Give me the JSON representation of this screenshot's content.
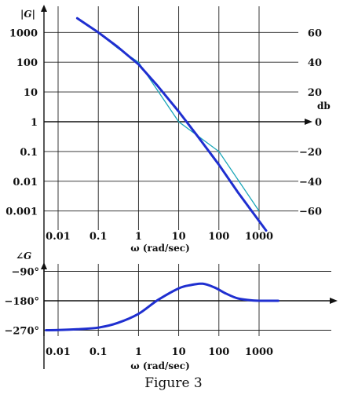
{
  "caption": "Figure 3",
  "chart_data": [
    {
      "type": "line",
      "title": "",
      "ylabel_left": "|G|",
      "ylabel_right": "db",
      "xlabel": "ω (rad/sec)",
      "xscale": "log",
      "yscale": "log",
      "xlim": [
        0.005,
        3000
      ],
      "ylim": [
        0.0005,
        3000
      ],
      "x_ticks": [
        "0.01",
        "0.1",
        "1",
        "10",
        "100",
        "1000"
      ],
      "y_ticks_left": [
        "1000",
        "100",
        "10",
        "1",
        "0.1",
        "0.01",
        "0.001"
      ],
      "y_ticks_right": [
        "60",
        "40",
        "20",
        "0",
        "−20",
        "−40",
        "−60"
      ],
      "grid": true,
      "colors": {
        "exact": "#1f2fd0",
        "asymptote": "#1aa6b8"
      },
      "series": [
        {
          "role": "exact",
          "x": [
            0.03,
            0.1,
            0.3,
            1,
            3,
            10,
            30,
            100,
            300,
            1500
          ],
          "y": [
            3000,
            1000,
            330,
            85,
            16,
            2.2,
            0.32,
            0.036,
            0.0042,
            0.00022
          ]
        },
        {
          "role": "asymptote",
          "x": [
            0.1,
            0.3,
            1,
            10,
            100,
            1000
          ],
          "y": [
            1000,
            300,
            100,
            1,
            0.1,
            0.001
          ]
        }
      ]
    },
    {
      "type": "line",
      "title": "",
      "ylabel": "∠G",
      "xlabel": "ω (rad/sec)",
      "xscale": "log",
      "xlim": [
        0.005,
        3000
      ],
      "ylim": [
        -290,
        -75
      ],
      "x_ticks": [
        "0.01",
        "0.1",
        "1",
        "10",
        "100",
        "1000"
      ],
      "y_ticks": [
        "−90°",
        "−180°",
        "−270°"
      ],
      "grid": true,
      "colors": {
        "phase": "#1f2fd0"
      },
      "series": [
        {
          "role": "phase",
          "x": [
            0.005,
            0.01,
            0.03,
            0.1,
            0.3,
            1,
            3,
            10,
            20,
            40,
            80,
            150,
            300,
            700,
            1500,
            3000
          ],
          "y": [
            -270,
            -269.5,
            -267,
            -262,
            -248,
            -220,
            -178,
            -142,
            -132,
            -128,
            -140,
            -158,
            -173,
            -179,
            -180,
            -180
          ]
        }
      ]
    }
  ]
}
